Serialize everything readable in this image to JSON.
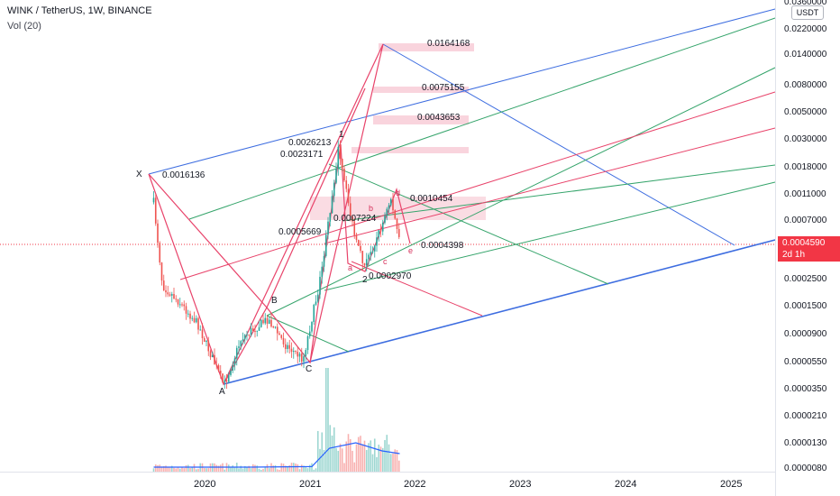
{
  "header": {
    "title": "WINK / TetherUS, 1W, BINANCE",
    "volume_label": "Vol (20)"
  },
  "axis": {
    "currency": "USDT",
    "current_price": "0.0004590",
    "countdown": "2d 1h",
    "price_ticks": [
      "0.0360000",
      "0.0220000",
      "0.0140000",
      "0.0080000",
      "0.0050000",
      "0.0030000",
      "0.0018000",
      "0.0011000",
      "0.0007000",
      "0.0002500",
      "0.0001500",
      "0.0000900",
      "0.0000550",
      "0.0000350",
      "0.0000210",
      "0.0000130",
      "0.0000080"
    ],
    "year_ticks": [
      "2020",
      "2021",
      "2022",
      "2023",
      "2024",
      "2025"
    ]
  },
  "annotations": {
    "levels": [
      "0.0164168",
      "0.0075155",
      "0.0043653",
      "0.0026213",
      "0.0023171",
      "0.0016136",
      "0.0010454",
      "0.0007224",
      "0.0005669",
      "0.0004398",
      "0.0002970"
    ],
    "pattern_points": [
      "X",
      "A",
      "B",
      "C",
      "1",
      "2",
      "a",
      "b",
      "c",
      "d",
      "e"
    ]
  },
  "colors": {
    "blue": "#3d6de0",
    "green": "#35a46b",
    "red": "#e8436a",
    "candle_green": "#26a69a",
    "candle_red": "#ef5350",
    "volume_line": "#2962ff",
    "price_tag": "#f23645"
  },
  "chart_data": {
    "type": "candlestick",
    "symbol": "WINK / TetherUS",
    "interval": "1W",
    "exchange": "BINANCE",
    "y_scale": "log",
    "ylim": [
      7e-06,
      0.036
    ],
    "x_range": [
      "2019-07",
      "2025-12"
    ],
    "current_price": 0.000459,
    "series": [
      {
        "name": "WINK / TetherUS",
        "approx_close_path": [
          {
            "x": "2019-07",
            "y": 0.00098
          },
          {
            "x": "2019-08",
            "y": 0.00022
          },
          {
            "x": "2019-10",
            "y": 0.00016
          },
          {
            "x": "2019-12",
            "y": 0.00011
          },
          {
            "x": "2020-03",
            "y": 3.6e-05
          },
          {
            "x": "2020-05",
            "y": 8.5e-05
          },
          {
            "x": "2020-08",
            "y": 0.00012
          },
          {
            "x": "2020-10",
            "y": 7.5e-05
          },
          {
            "x": "2020-12",
            "y": 5.8e-05
          },
          {
            "x": "2021-02",
            "y": 0.00025
          },
          {
            "x": "2021-04",
            "y": 0.0025
          },
          {
            "x": "2021-06",
            "y": 0.00048
          },
          {
            "x": "2021-07",
            "y": 0.00031
          },
          {
            "x": "2021-09",
            "y": 0.00065
          },
          {
            "x": "2021-10",
            "y": 0.00105
          },
          {
            "x": "2021-11",
            "y": 0.00046
          }
        ]
      },
      {
        "name": "Vol (20)",
        "approx_ma_path": [
          {
            "x": "2019-07",
            "y": 1
          },
          {
            "x": "2020-06",
            "y": 1
          },
          {
            "x": "2021-01",
            "y": 1.2
          },
          {
            "x": "2021-03",
            "y": 8
          },
          {
            "x": "2021-06",
            "y": 10
          },
          {
            "x": "2021-09",
            "y": 7
          },
          {
            "x": "2021-11",
            "y": 6
          }
        ]
      }
    ]
  }
}
